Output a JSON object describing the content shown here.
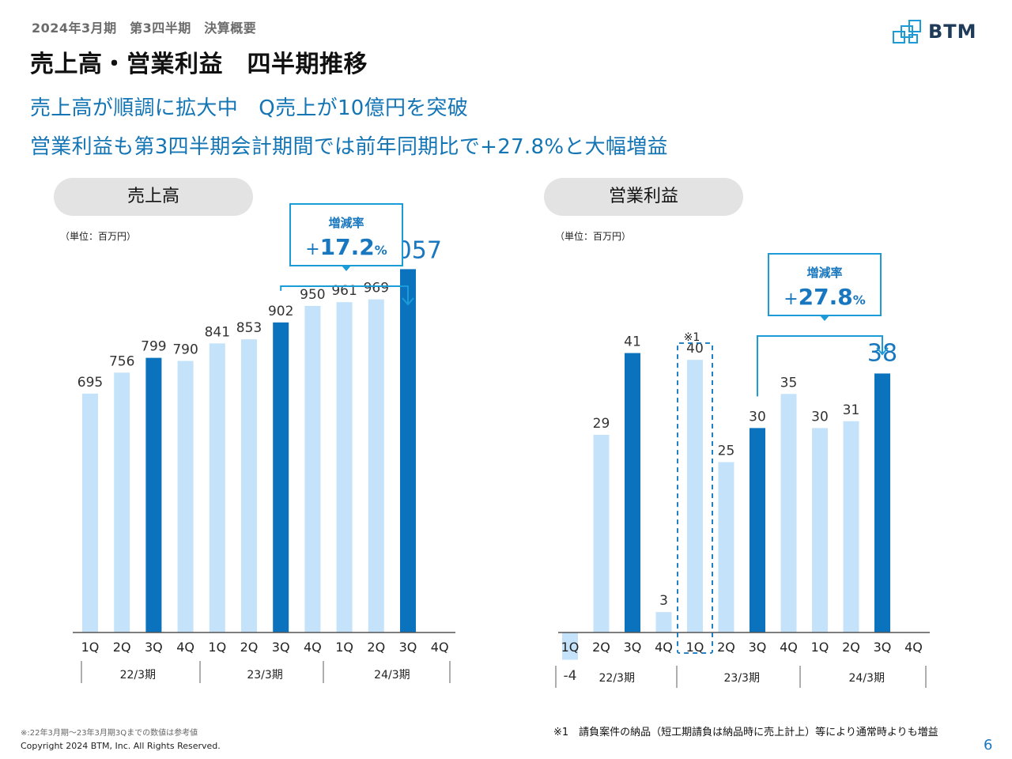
{
  "header": {
    "subtitle": "2024年3月期　第3四半期　決算概要",
    "title": "売上高・営業利益　四半期推移",
    "logo_text": "BTM"
  },
  "headlines": [
    "売上高が順調に拡大中　Q売上が10億円を突破",
    "営業利益も第3四半期会計期間では前年同期比で+27.8%と大幅増益"
  ],
  "colors": {
    "bar_light": "#c4e3fa",
    "bar_dark": "#0b72bd",
    "accent": "#1b9bd7",
    "axis": "#555555"
  },
  "chart_data": [
    {
      "type": "bar",
      "title": "売上高",
      "unit": "（単位：百万円）",
      "ylim": [
        0,
        1150
      ],
      "categories": [
        "1Q",
        "2Q",
        "3Q",
        "4Q",
        "1Q",
        "2Q",
        "3Q",
        "4Q",
        "1Q",
        "2Q",
        "3Q",
        "4Q"
      ],
      "periods": [
        "22/3期",
        "23/3期",
        "24/3期"
      ],
      "series": [
        {
          "values": [
            695,
            756,
            799,
            790,
            841,
            853,
            902,
            950,
            961,
            969,
            1057,
            null
          ],
          "labels": [
            "695",
            "756",
            "799",
            "790",
            "841",
            "853",
            "902",
            "950",
            "961",
            "969",
            "1,057",
            ""
          ],
          "highlight": [
            2,
            6,
            10
          ],
          "emphasis": [
            10
          ]
        }
      ],
      "annotation": {
        "title": "増減率",
        "sign": "+",
        "value": "17.2",
        "suffix": "%",
        "from_index": 6,
        "to_index": 10
      },
      "legend": "none",
      "grid": false
    },
    {
      "type": "bar",
      "title": "営業利益",
      "unit": "（単位：百万円）",
      "ylim": [
        -5,
        58
      ],
      "categories": [
        "1Q",
        "2Q",
        "3Q",
        "4Q",
        "1Q",
        "2Q",
        "3Q",
        "4Q",
        "1Q",
        "2Q",
        "3Q",
        "4Q"
      ],
      "periods": [
        "22/3期",
        "23/3期",
        "24/3期"
      ],
      "series": [
        {
          "values": [
            -4,
            29,
            41,
            3,
            40,
            25,
            30,
            35,
            30,
            31,
            38,
            null
          ],
          "labels": [
            "-4",
            "29",
            "41",
            "3",
            "40",
            "25",
            "30",
            "35",
            "30",
            "31",
            "38",
            ""
          ],
          "highlight": [
            2,
            6,
            10
          ],
          "emphasis": [
            10
          ]
        }
      ],
      "annotation": {
        "title": "増減率",
        "sign": "+",
        "value": "27.8",
        "suffix": "%",
        "from_index": 6,
        "to_index": 10
      },
      "note_mark": {
        "text": "※1",
        "index": 4
      },
      "legend": "none",
      "grid": false
    }
  ],
  "footer": {
    "note_left": "※:22年3月期～23年3月期3Qまでの数値は参考値",
    "copyright": "Copyright 2024 BTM, Inc. All Rights Reserved.",
    "note_right": "※1　請負案件の納品（短工期請負は納品時に売上計上）等により通常時よりも増益",
    "page_number": "6"
  }
}
